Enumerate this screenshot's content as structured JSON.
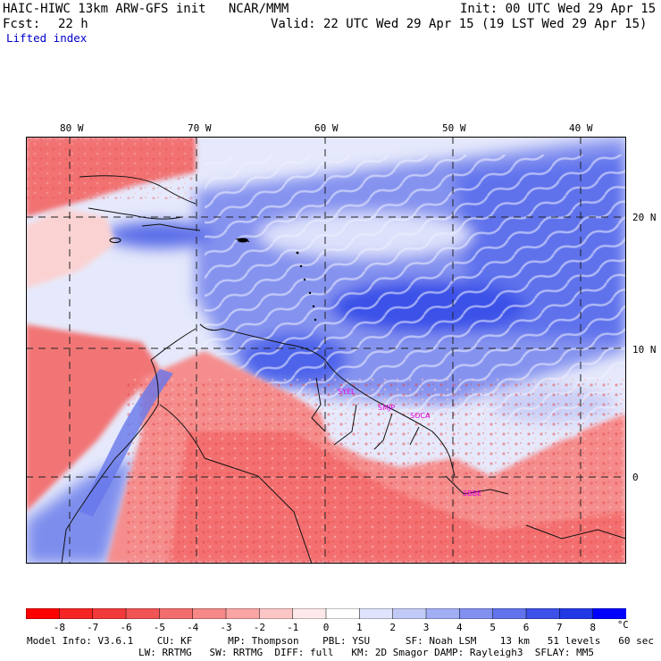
{
  "header": {
    "title_left": "HAIC-HIWC 13km ARW-GFS init   NCAR/MMM",
    "init": "Init: 00 UTC Wed 29 Apr 15",
    "fcst_label": "Fcst:",
    "fcst_value": "22 h",
    "valid": "Valid: 22 UTC Wed 29 Apr 15 (19 LST Wed 29 Apr 15)",
    "field": "Lifted index"
  },
  "map": {
    "lon_labels": [
      "80 W",
      "70 W",
      "60 W",
      "50 W",
      "40 W"
    ],
    "lat_labels": [
      "20 N",
      "10 N",
      "0"
    ],
    "stations": [
      "SYEL",
      "SMJP",
      "SOCA",
      "SBBE"
    ],
    "colors": {
      "ocean_unstable": "#2f49e6",
      "ocean_mid": "#8a9bf0",
      "land_stable": "#f46f6f",
      "neutral": "#f6f1f3",
      "station_label": "#e000e0",
      "grid": "#222222"
    }
  },
  "colorbar": {
    "labels": [
      "-8",
      "-7",
      "-6",
      "-5",
      "-4",
      "-3",
      "-2",
      "-1",
      "0",
      "1",
      "2",
      "3",
      "4",
      "5",
      "6",
      "7",
      "8"
    ],
    "unit": "°C",
    "colors": [
      "#ff0000",
      "#f62424",
      "#f23a3a",
      "#f05454",
      "#f26d6d",
      "#f68888",
      "#faa5a5",
      "#fdc6c6",
      "#fde9e9",
      "#ffffff",
      "#dfe3fb",
      "#c2caf7",
      "#a2aef4",
      "#8291f0",
      "#6073ec",
      "#3c51e8",
      "#2238e4",
      "#0000ff"
    ]
  },
  "footer": {
    "line1": "Model Info: V3.6.1    CU: KF      MP: Thompson    PBL: YSU      SF: Noah LSM    13 km   51 levels   60 sec",
    "line2": "LW: RRTMG   SW: RRTMG  DIFF: full   KM: 2D Smagor DAMP: Rayleigh3  SFLAY: MM5"
  }
}
